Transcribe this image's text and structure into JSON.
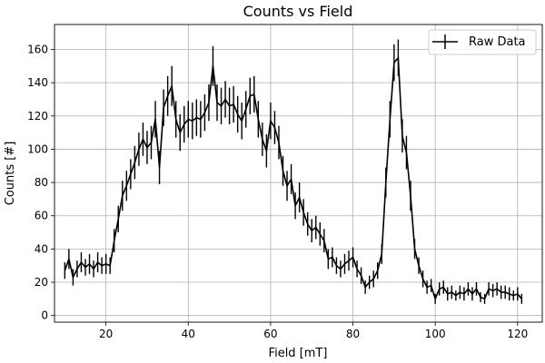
{
  "chart_data": {
    "type": "line",
    "title": "Counts vs Field",
    "xlabel": "Field [mT]",
    "ylabel": "Counts [#]",
    "xlim": [
      7.5,
      126
    ],
    "ylim": [
      -4,
      175
    ],
    "xticks": [
      20,
      40,
      60,
      80,
      100,
      120
    ],
    "yticks": [
      0,
      20,
      40,
      60,
      80,
      100,
      120,
      140,
      160
    ],
    "grid": true,
    "legend_position": "top-right",
    "series": [
      {
        "name": "Raw Data",
        "color": "#000000",
        "error_bars": true,
        "x": [
          10,
          11,
          12,
          13,
          14,
          15,
          16,
          17,
          18,
          19,
          20,
          21,
          22,
          23,
          24,
          25,
          26,
          27,
          28,
          29,
          30,
          31,
          32,
          33,
          34,
          35,
          36,
          37,
          38,
          39,
          40,
          41,
          42,
          43,
          44,
          45,
          46,
          47,
          48,
          49,
          50,
          51,
          52,
          53,
          54,
          55,
          56,
          57,
          58,
          59,
          60,
          61,
          62,
          63,
          64,
          65,
          66,
          67,
          68,
          69,
          70,
          71,
          72,
          73,
          74,
          75,
          76,
          77,
          78,
          79,
          80,
          81,
          82,
          83,
          84,
          85,
          86,
          87,
          88,
          89,
          90,
          91,
          92,
          93,
          94,
          95,
          96,
          97,
          98,
          99,
          100,
          101,
          102,
          103,
          104,
          105,
          106,
          107,
          108,
          109,
          110,
          111,
          112,
          113,
          114,
          115,
          116,
          117,
          118,
          119,
          120,
          121
        ],
        "y": [
          27,
          34,
          23,
          28,
          32,
          29,
          31,
          28,
          32,
          30,
          31,
          30,
          45,
          58,
          72,
          78,
          85,
          92,
          100,
          106,
          101,
          104,
          118,
          89,
          125,
          132,
          138,
          118,
          110,
          115,
          118,
          117,
          119,
          118,
          122,
          128,
          150,
          128,
          126,
          130,
          126,
          127,
          121,
          117,
          124,
          132,
          133,
          118,
          106,
          99,
          117,
          113,
          104,
          87,
          78,
          82,
          66,
          71,
          62,
          55,
          51,
          53,
          49,
          45,
          34,
          35,
          30,
          28,
          31,
          33,
          35,
          28,
          24,
          17,
          20,
          22,
          27,
          37,
          80,
          118,
          152,
          155,
          108,
          98,
          72,
          40,
          30,
          22,
          17,
          18,
          10,
          16,
          17,
          13,
          14,
          12,
          14,
          13,
          16,
          13,
          16,
          11,
          10,
          16,
          15,
          16,
          14,
          14,
          13,
          12,
          13,
          10
        ],
        "yerr": [
          5,
          6,
          5,
          5,
          6,
          5,
          6,
          5,
          6,
          5,
          6,
          5,
          7,
          8,
          9,
          9,
          9,
          10,
          10,
          10,
          10,
          10,
          11,
          10,
          11,
          12,
          12,
          11,
          11,
          11,
          11,
          11,
          11,
          11,
          11,
          11,
          12,
          11,
          11,
          11,
          11,
          11,
          11,
          11,
          11,
          11,
          11,
          11,
          10,
          10,
          11,
          10,
          10,
          9,
          9,
          9,
          8,
          9,
          8,
          7,
          7,
          7,
          7,
          7,
          6,
          6,
          5,
          5,
          6,
          6,
          6,
          5,
          5,
          4,
          4,
          5,
          5,
          6,
          9,
          11,
          11,
          11,
          10,
          10,
          9,
          6,
          5,
          5,
          4,
          4,
          3,
          4,
          4,
          4,
          4,
          3,
          4,
          4,
          4,
          4,
          4,
          3,
          3,
          4,
          4,
          4,
          4,
          4,
          4,
          3,
          4,
          3
        ]
      }
    ]
  }
}
